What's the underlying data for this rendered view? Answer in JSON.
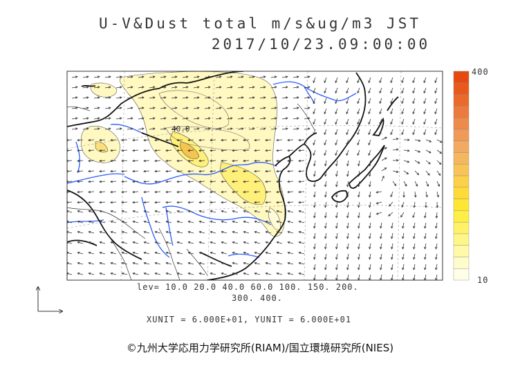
{
  "title_line1": "U-V&Dust total m/s&ug/m3 JST",
  "title_line2": "2017/10/23.09:00:00",
  "levels_line1": "lev= 10.0 20.0 40.0 60.0 100. 150. 200.",
  "levels_line2": "300. 400.",
  "contour_label": "40.0",
  "units_line": "XUNIT = 6.000E+01, YUNIT = 6.000E+01",
  "colorbar": {
    "max_label": "400",
    "min_label": "10",
    "colors": [
      "#fffee6",
      "#fffccc",
      "#fff9a8",
      "#fff68a",
      "#fff266",
      "#ffee44",
      "#ffe633",
      "#ffdb3a",
      "#fcd048",
      "#f8c455",
      "#f5b75e",
      "#f2a960",
      "#f09a58",
      "#ee8a4c",
      "#ec7a3c",
      "#ea6a2c",
      "#e85a1c",
      "#e74a10"
    ]
  },
  "copyright": "©九州大学応用力学研究所(RIAM)/国立環境研究所(NIES)"
}
